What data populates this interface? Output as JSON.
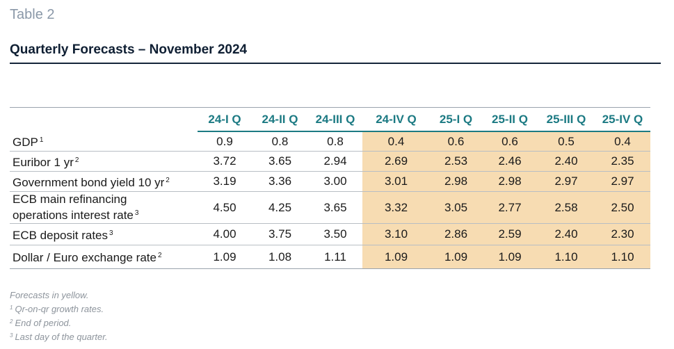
{
  "table_label": "Table 2",
  "title": "Quarterly Forecasts – November 2024",
  "columns": [
    "24-I Q",
    "24-II Q",
    "24-III Q",
    "24-IV Q",
    "25-I Q",
    "25-II Q",
    "25-III Q",
    "25-IV Q"
  ],
  "forecast_color": "#f7dcb2",
  "header_color": "#1c7a83",
  "rows": [
    {
      "label": "GDP",
      "note": "1",
      "values": [
        "0.9",
        "0.8",
        "0.8",
        "0.4",
        "0.6",
        "0.6",
        "0.5",
        "0.4"
      ]
    },
    {
      "label": "Euribor 1 yr",
      "note": "2",
      "values": [
        "3.72",
        "3.65",
        "2.94",
        "2.69",
        "2.53",
        "2.46",
        "2.40",
        "2.35"
      ]
    },
    {
      "label": "Government bond yield 10 yr",
      "note": "2",
      "values": [
        "3.19",
        "3.36",
        "3.00",
        "3.01",
        "2.98",
        "2.98",
        "2.97",
        "2.97"
      ]
    },
    {
      "label_line1": "ECB main refinancing",
      "label_line2": "operations interest rate",
      "note": "3",
      "values": [
        "4.50",
        "4.25",
        "3.65",
        "3.32",
        "3.05",
        "2.77",
        "2.58",
        "2.50"
      ]
    },
    {
      "label": "ECB deposit rates",
      "note": "3",
      "values": [
        "4.00",
        "3.75",
        "3.50",
        "3.10",
        "2.86",
        "2.59",
        "2.40",
        "2.30"
      ]
    },
    {
      "label": "Dollar / Euro exchange rate",
      "note": "2",
      "values": [
        "1.09",
        "1.08",
        "1.11",
        "1.09",
        "1.09",
        "1.09",
        "1.10",
        "1.10"
      ]
    }
  ],
  "footnotes": {
    "forecast_note": "Forecasts in yellow.",
    "notes": [
      {
        "mark": "1",
        "text": "Qr-on-qr growth rates."
      },
      {
        "mark": "2",
        "text": "End of period."
      },
      {
        "mark": "3",
        "text": "Last day of the quarter."
      }
    ]
  }
}
